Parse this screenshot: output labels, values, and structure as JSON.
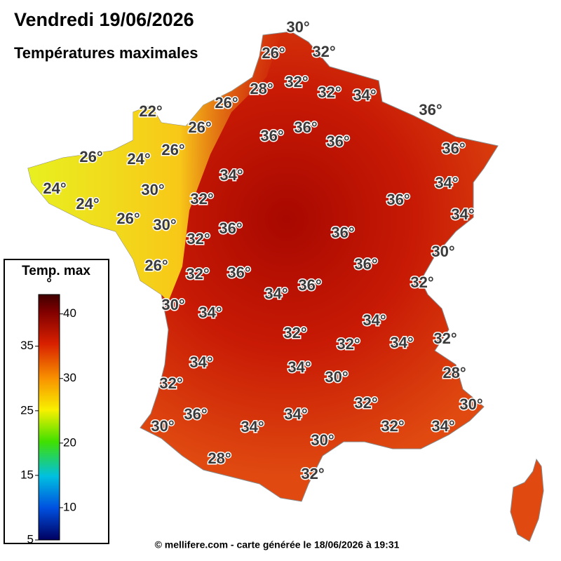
{
  "header": {
    "title": "Vendredi 19/06/2026",
    "subtitle": "Températures maximales"
  },
  "map": {
    "labels": [
      "30°",
      "26°",
      "32°",
      "28°",
      "32°",
      "32°",
      "34°",
      "26°",
      "22°",
      "36°",
      "26°",
      "36°",
      "36°",
      "36°",
      "26°",
      "24°",
      "26°",
      "36°",
      "34°",
      "24°",
      "30°",
      "34°",
      "24°",
      "32°",
      "36°",
      "26°",
      "30°",
      "34°",
      "36°",
      "32°",
      "36°",
      "30°",
      "26°",
      "32°",
      "36°",
      "36°",
      "34°",
      "36°",
      "32°",
      "30°",
      "34°",
      "34°",
      "32°",
      "32°",
      "34°",
      "32°",
      "34°",
      "34°",
      "28°",
      "32°",
      "30°",
      "32°",
      "30°",
      "36°",
      "34°",
      "30°",
      "34°",
      "32°",
      "34°",
      "30°",
      "28°",
      "32°"
    ]
  },
  "legend": {
    "title": "Temp. max",
    "unit": "°",
    "range": [
      5,
      43
    ],
    "ticks": [
      40,
      35,
      30,
      25,
      20,
      15,
      10,
      5
    ]
  },
  "footer": "© mellifere.com - carte générée le 18/06/2026 à 19:31"
}
